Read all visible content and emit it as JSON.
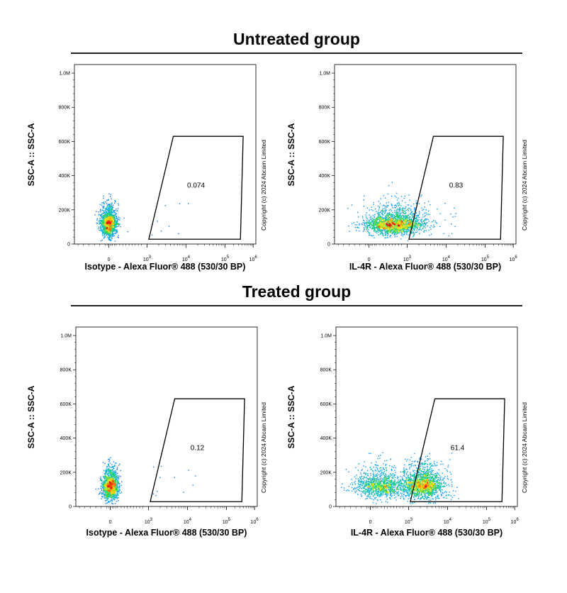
{
  "groups": [
    {
      "title": "Untreated group"
    },
    {
      "title": "Treated group"
    }
  ],
  "chart_data": [
    {
      "type": "scatter",
      "group": "Untreated group",
      "xlabel": "Isotype - Alexa Fluor® 488 (530/30 BP)",
      "ylabel": "SSC-A :: SSC-A",
      "y_tick_labels": [
        "0",
        "200K",
        "400K",
        "600K",
        "800K",
        "1.0M"
      ],
      "y_tick_values": [
        0,
        200000,
        400000,
        600000,
        800000,
        1000000
      ],
      "ylim": [
        0,
        1050000
      ],
      "x_tick_labels": [
        "0",
        "10",
        "10",
        "10",
        "10"
      ],
      "x_tick_exponents": [
        "",
        "3",
        "4",
        "5",
        "6"
      ],
      "x_scale": "biexponential",
      "gate_value": "0.074",
      "copyright": "Copyright (c) 2024 Abcam Limited",
      "population": {
        "center_ssc": 105000,
        "positive_fraction": 0.074
      }
    },
    {
      "type": "scatter",
      "group": "Untreated group",
      "xlabel": "IL-4R - Alexa Fluor® 488 (530/30 BP)",
      "ylabel": "SSC-A :: SSC-A",
      "y_tick_labels": [
        "0",
        "200K",
        "400K",
        "600K",
        "800K",
        "1.0M"
      ],
      "y_tick_values": [
        0,
        200000,
        400000,
        600000,
        800000,
        1000000
      ],
      "ylim": [
        0,
        1050000
      ],
      "x_tick_labels": [
        "0",
        "10",
        "10",
        "10",
        "10"
      ],
      "x_tick_exponents": [
        "",
        "3",
        "4",
        "5",
        "6"
      ],
      "x_scale": "biexponential",
      "gate_value": "0.83",
      "copyright": "Copyright (c) 2024 Abcam Limited",
      "population": {
        "center_ssc": 105000,
        "positive_fraction": 0.83
      }
    },
    {
      "type": "scatter",
      "group": "Treated group",
      "xlabel": "Isotype - Alexa Fluor® 488 (530/30 BP)",
      "ylabel": "SSC-A :: SSC-A",
      "y_tick_labels": [
        "0",
        "200K",
        "400K",
        "600K",
        "800K",
        "1.0M"
      ],
      "y_tick_values": [
        0,
        200000,
        400000,
        600000,
        800000,
        1000000
      ],
      "ylim": [
        0,
        1050000
      ],
      "x_tick_labels": [
        "0",
        "10",
        "10",
        "10",
        "10"
      ],
      "x_tick_exponents": [
        "",
        "3",
        "4",
        "5",
        "6"
      ],
      "x_scale": "biexponential",
      "gate_value": "0.12",
      "copyright": "Copyright (c) 2024 Abcam Limited",
      "population": {
        "center_ssc": 105000,
        "positive_fraction": 0.12
      }
    },
    {
      "type": "scatter",
      "group": "Treated group",
      "xlabel": "IL-4R - Alexa Fluor® 488 (530/30 BP)",
      "ylabel": "SSC-A :: SSC-A",
      "y_tick_labels": [
        "0",
        "200K",
        "400K",
        "600K",
        "800K",
        "1.0M"
      ],
      "y_tick_values": [
        0,
        200000,
        400000,
        600000,
        800000,
        1000000
      ],
      "ylim": [
        0,
        1050000
      ],
      "x_tick_labels": [
        "0",
        "10",
        "10",
        "10",
        "10"
      ],
      "x_tick_exponents": [
        "",
        "3",
        "4",
        "5",
        "6"
      ],
      "x_scale": "biexponential",
      "gate_value": "61.4",
      "copyright": "Copyright (c) 2024 Abcam Limited",
      "population": {
        "center_ssc": 110000,
        "positive_fraction": 0.614
      }
    }
  ]
}
